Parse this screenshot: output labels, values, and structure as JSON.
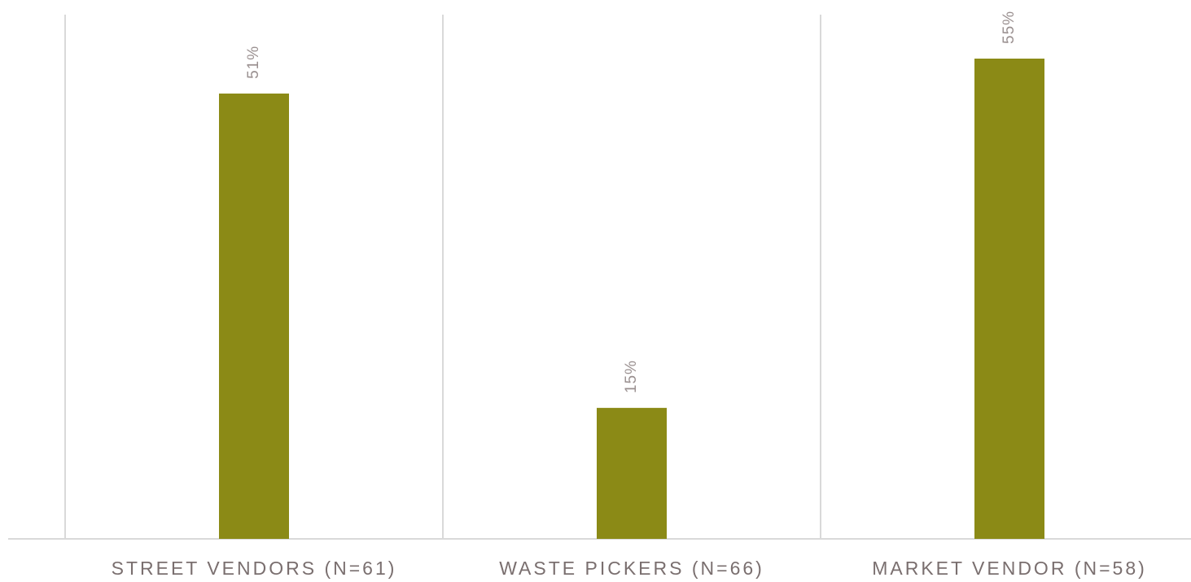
{
  "chart_data": {
    "type": "bar",
    "categories": [
      "STREET VENDORS (N=61)",
      "WASTE PICKERS (N=66)",
      "MARKET VENDOR (N=58)"
    ],
    "values": [
      51,
      15,
      55
    ],
    "data_labels": [
      "51%",
      "15%",
      "55%"
    ],
    "unit": "%",
    "title": "",
    "xlabel": "",
    "ylabel": "",
    "ylim": [
      0,
      56.5
    ],
    "grid": "vertical category separators",
    "legend": "none",
    "bar_color": "#8b8a16",
    "axis_color": "#d9d9d9",
    "label_color": "#7a6f6f"
  }
}
